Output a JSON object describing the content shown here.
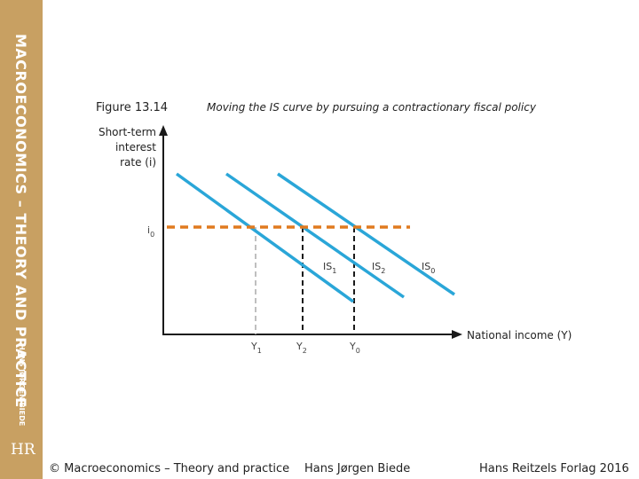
{
  "sidebar": {
    "title": "MACROECONOMICS – THEORY AND PRACTICE",
    "author": "HANS JØRGEN BIEDE",
    "publisher_logo": "HR"
  },
  "figure": {
    "number": "Figure 13.14",
    "caption": "Moving the IS curve by pursuing a contractionary fiscal policy",
    "y_axis_label": [
      "Short-term",
      "interest",
      "rate (i)"
    ],
    "x_axis_label": "National income (Y)",
    "interest_level": {
      "symbol": "i",
      "sub": "0"
    },
    "income_levels": [
      {
        "symbol": "Y",
        "sub": "1",
        "line": "dashed-grey"
      },
      {
        "symbol": "Y",
        "sub": "2",
        "line": "dashed-black"
      },
      {
        "symbol": "Y",
        "sub": "0",
        "line": "dashed-black"
      }
    ],
    "curves": [
      {
        "symbol": "IS",
        "sub": "1"
      },
      {
        "symbol": "IS",
        "sub": "2"
      },
      {
        "symbol": "IS",
        "sub": "0"
      }
    ],
    "colors": {
      "is_curves": "#2aa6d8",
      "interest_line": "#e07a1f",
      "axes": "#1a1a1a",
      "y1_line": "#aaaaaa",
      "y_lines": "#1a1a1a",
      "sidebar": "#c8a062"
    }
  },
  "footer": {
    "copyright": "© Macroeconomics – Theory and practice",
    "author": "Hans Jørgen Biede",
    "publisher": "Hans Reitzels Forlag 2016"
  }
}
